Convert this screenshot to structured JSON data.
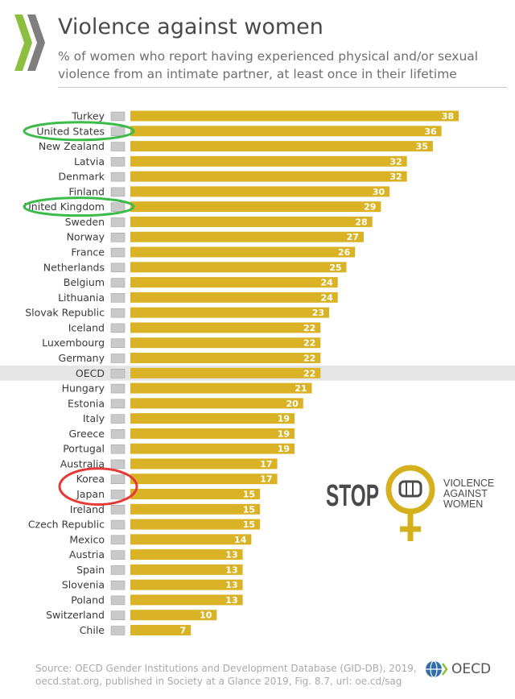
{
  "header": {
    "title": "Violence against women",
    "subtitle": "% of women who report having experienced physical and/or sexual violence from an intimate partner, at least once in their lifetime"
  },
  "colors": {
    "bar": "#d9b325",
    "highlight_row": "#e5e5e5",
    "green_circle": "#3dbb4a",
    "red_circle": "#e53935",
    "stop_gold": "#d4b11c",
    "logo_green": "#8cbf3f"
  },
  "chart_data": {
    "type": "bar",
    "orientation": "horizontal",
    "categories": [
      "Turkey",
      "United States",
      "New Zealand",
      "Latvia",
      "Denmark",
      "Finland",
      "United Kingdom",
      "Sweden",
      "Norway",
      "France",
      "Netherlands",
      "Belgium",
      "Lithuania",
      "Slovak Republic",
      "Iceland",
      "Luxembourg",
      "Germany",
      "OECD",
      "Hungary",
      "Estonia",
      "Italy",
      "Greece",
      "Portugal",
      "Australia",
      "Korea",
      "Japan",
      "Ireland",
      "Czech Republic",
      "Mexico",
      "Austria",
      "Spain",
      "Slovenia",
      "Poland",
      "Switzerland",
      "Chile"
    ],
    "values": [
      38,
      36,
      35,
      32,
      32,
      30,
      29,
      28,
      27,
      26,
      25,
      24,
      24,
      23,
      22,
      22,
      22,
      22,
      21,
      20,
      19,
      19,
      19,
      17,
      17,
      15,
      15,
      15,
      14,
      13,
      13,
      13,
      13,
      10,
      7
    ],
    "highlighted_category": "OECD",
    "green_circled": [
      "United States",
      "United Kingdom"
    ],
    "red_circled": [
      "Korea",
      "Japan"
    ],
    "data_labels": true,
    "grid": false,
    "legend": "none"
  },
  "stop_graphic": {
    "stop": "STOP",
    "line1": "VIOLENCE",
    "line2": "AGAINST",
    "line3": "WOMEN"
  },
  "footer": {
    "source_line1": "Source: OECD Gender Institutions and Development Database (GID-DB), 2019,",
    "source_line2": "oecd.stat.org, published in Society at a Glance 2019, Fig. 8.7, url: oe.cd/sag",
    "oecd_label": "OECD"
  }
}
